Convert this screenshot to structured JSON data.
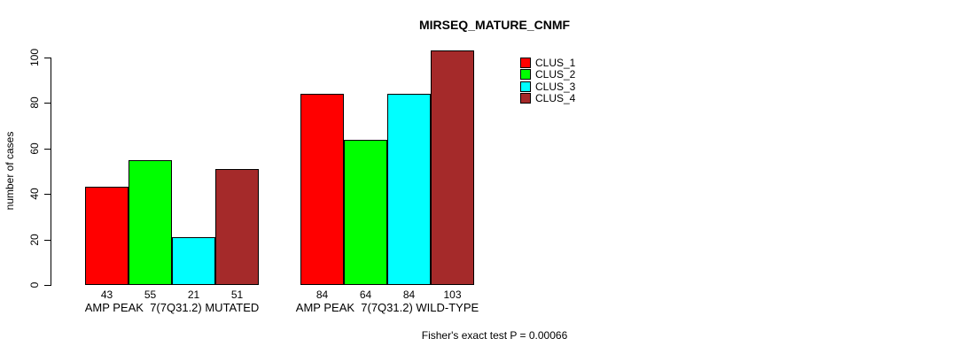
{
  "chart_data": {
    "type": "bar",
    "title": "MIRSEQ_MATURE_CNMF",
    "ylabel": "number of cases",
    "xlabel": "",
    "categories": [
      "AMP PEAK  7(7Q31.2) MUTATED",
      "AMP PEAK  7(7Q31.2) WILD-TYPE"
    ],
    "series": [
      {
        "name": "CLUS_1",
        "color": "#FF0000",
        "values": [
          43,
          84
        ]
      },
      {
        "name": "CLUS_2",
        "color": "#00FF00",
        "values": [
          55,
          64
        ]
      },
      {
        "name": "CLUS_3",
        "color": "#00FFFF",
        "values": [
          21,
          84
        ]
      },
      {
        "name": "CLUS_4",
        "color": "#A52A2A",
        "values": [
          51,
          103
        ]
      }
    ],
    "y_ticks": [
      0,
      20,
      40,
      60,
      80,
      100
    ],
    "ylim": [
      0,
      103
    ],
    "grid": false,
    "bar_value_labels": true,
    "legend_position": "top-right",
    "annotation": "Fisher's exact test P = 0.00066"
  }
}
